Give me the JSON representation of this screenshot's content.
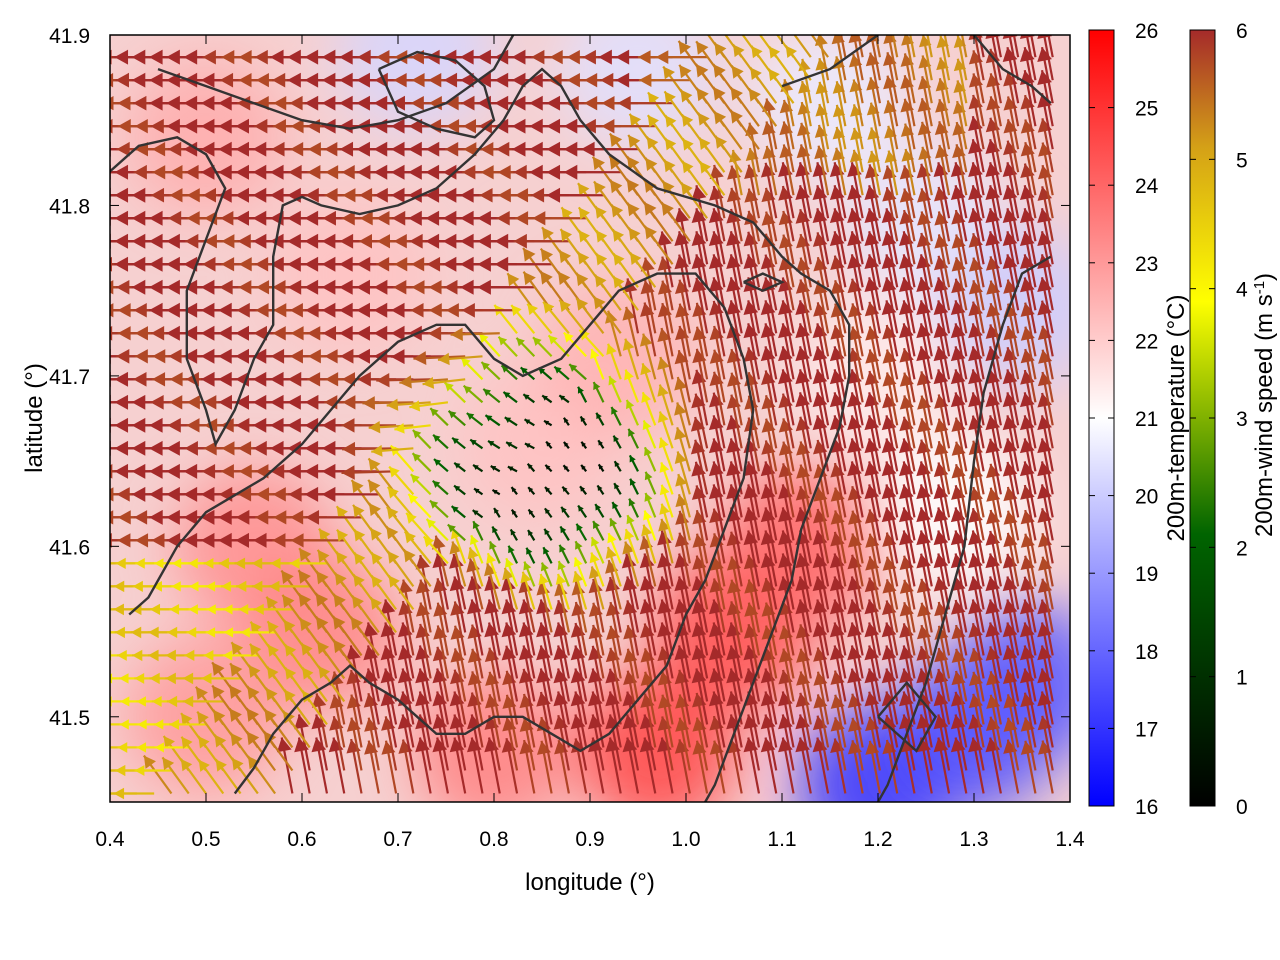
{
  "chart_data": {
    "type": "heatmap",
    "subtype": "field map with wind vectors and contour lines",
    "xlabel": "longitude (°)",
    "ylabel": "latitude (°)",
    "xlim": [
      0.4,
      1.4
    ],
    "ylim": [
      41.45,
      41.9
    ],
    "x_ticks": [
      "0.4",
      "0.5",
      "0.6",
      "0.7",
      "0.8",
      "0.9",
      "1.0",
      "1.1",
      "1.2",
      "1.3",
      "1.4"
    ],
    "y_ticks": [
      "41.5",
      "41.6",
      "41.7",
      "41.8",
      "41.9"
    ],
    "grid": false,
    "temperature_colorbar": {
      "label": "200m-temperature (°C)",
      "range": [
        16,
        26
      ],
      "ticks": [
        "16",
        "17",
        "18",
        "19",
        "20",
        "21",
        "22",
        "23",
        "24",
        "25",
        "26"
      ],
      "colors": [
        "#0000ff",
        "#ffffff",
        "#ff0000"
      ]
    },
    "wind_colorbar": {
      "label": "200m-wind speed (m s",
      "label_superscript": "-1",
      "label_suffix": ")",
      "range": [
        0,
        6
      ],
      "ticks": [
        "0",
        "1",
        "2",
        "3",
        "4",
        "5",
        "6"
      ],
      "colors": [
        "#000000",
        "#006400",
        "#ffff00",
        "#d4a017",
        "#a52a2a"
      ]
    },
    "temperature_blobs": [
      {
        "lon": 0.5,
        "lat": 41.84,
        "value": 22.6
      },
      {
        "lon": 0.55,
        "lat": 41.6,
        "value": 23.2
      },
      {
        "lon": 0.62,
        "lat": 41.55,
        "value": 23.4
      },
      {
        "lon": 0.5,
        "lat": 41.5,
        "value": 23.0
      },
      {
        "lon": 0.85,
        "lat": 41.66,
        "value": 22.2
      },
      {
        "lon": 0.93,
        "lat": 41.71,
        "value": 22.5
      },
      {
        "lon": 1.05,
        "lat": 41.55,
        "value": 24.5
      },
      {
        "lon": 1.12,
        "lat": 41.6,
        "value": 24.0
      },
      {
        "lon": 0.97,
        "lat": 41.48,
        "value": 24.6
      },
      {
        "lon": 0.8,
        "lat": 41.48,
        "value": 23.5
      },
      {
        "lon": 0.65,
        "lat": 41.76,
        "value": 22.2
      },
      {
        "lon": 1.15,
        "lat": 41.86,
        "value": 20.6
      },
      {
        "lon": 1.25,
        "lat": 41.79,
        "value": 20.5
      },
      {
        "lon": 1.35,
        "lat": 41.74,
        "value": 20.0
      },
      {
        "lon": 0.72,
        "lat": 41.89,
        "value": 20.2
      },
      {
        "lon": 0.95,
        "lat": 41.88,
        "value": 20.4
      },
      {
        "lon": 1.2,
        "lat": 41.46,
        "value": 17.0
      },
      {
        "lon": 1.3,
        "lat": 41.49,
        "value": 17.5
      },
      {
        "lon": 1.36,
        "lat": 41.52,
        "value": 17.8
      },
      {
        "lon": 1.28,
        "lat": 41.62,
        "value": 21.0
      },
      {
        "lon": 1.2,
        "lat": 41.7,
        "value": 21.4
      }
    ],
    "wind_field": {
      "domain": "longitude 0.4–1.4, latitude 41.45–41.9",
      "regimes": [
        {
          "region": "northwest half",
          "direction": "westward",
          "speed_ms": 6
        },
        {
          "region": "east and southeast",
          "direction": "north-northwestward",
          "speed_ms": 6
        },
        {
          "region": "center near (0.86, 41.64)",
          "direction": "calm",
          "speed_ms": 0.3
        },
        {
          "region": "southwest band",
          "direction": "westward",
          "speed_ms": 3.5
        }
      ]
    },
    "contour_lines": [
      {
        "name": "contour-1",
        "points": [
          [
            0.4,
            41.82
          ],
          [
            0.43,
            41.835
          ],
          [
            0.47,
            41.84
          ],
          [
            0.5,
            41.83
          ],
          [
            0.52,
            41.81
          ],
          [
            0.5,
            41.78
          ],
          [
            0.48,
            41.75
          ],
          [
            0.48,
            41.71
          ],
          [
            0.5,
            41.68
          ],
          [
            0.51,
            41.66
          ],
          [
            0.53,
            41.68
          ],
          [
            0.55,
            41.71
          ],
          [
            0.57,
            41.73
          ],
          [
            0.57,
            41.77
          ],
          [
            0.58,
            41.8
          ],
          [
            0.6,
            41.805
          ],
          [
            0.62,
            41.8
          ],
          [
            0.66,
            41.795
          ],
          [
            0.7,
            41.8
          ],
          [
            0.74,
            41.81
          ],
          [
            0.78,
            41.83
          ],
          [
            0.81,
            41.85
          ],
          [
            0.83,
            41.87
          ],
          [
            0.85,
            41.88
          ],
          [
            0.87,
            41.87
          ],
          [
            0.89,
            41.85
          ],
          [
            0.92,
            41.83
          ],
          [
            0.97,
            41.81
          ],
          [
            1.03,
            41.8
          ],
          [
            1.07,
            41.79
          ],
          [
            1.1,
            41.77
          ],
          [
            1.12,
            41.76
          ],
          [
            1.15,
            41.75
          ],
          [
            1.17,
            41.73
          ],
          [
            1.17,
            41.7
          ],
          [
            1.16,
            41.67
          ],
          [
            1.14,
            41.64
          ],
          [
            1.12,
            41.61
          ],
          [
            1.11,
            41.58
          ],
          [
            1.09,
            41.55
          ],
          [
            1.07,
            41.52
          ],
          [
            1.05,
            41.49
          ],
          [
            1.03,
            41.46
          ],
          [
            1.02,
            41.45
          ]
        ]
      },
      {
        "name": "contour-2",
        "points": [
          [
            0.42,
            41.56
          ],
          [
            0.44,
            41.57
          ],
          [
            0.47,
            41.6
          ],
          [
            0.5,
            41.62
          ],
          [
            0.53,
            41.63
          ],
          [
            0.56,
            41.64
          ],
          [
            0.6,
            41.66
          ],
          [
            0.63,
            41.68
          ],
          [
            0.66,
            41.7
          ],
          [
            0.7,
            41.72
          ],
          [
            0.74,
            41.73
          ],
          [
            0.77,
            41.73
          ],
          [
            0.8,
            41.71
          ],
          [
            0.83,
            41.7
          ],
          [
            0.87,
            41.71
          ],
          [
            0.9,
            41.73
          ],
          [
            0.93,
            41.75
          ],
          [
            0.97,
            41.76
          ],
          [
            1.01,
            41.76
          ],
          [
            1.04,
            41.74
          ],
          [
            1.06,
            41.71
          ],
          [
            1.07,
            41.68
          ],
          [
            1.06,
            41.64
          ],
          [
            1.04,
            41.61
          ],
          [
            1.02,
            41.58
          ],
          [
            1.0,
            41.56
          ],
          [
            0.98,
            41.53
          ],
          [
            0.95,
            41.51
          ],
          [
            0.92,
            41.49
          ],
          [
            0.89,
            41.48
          ],
          [
            0.86,
            41.49
          ],
          [
            0.83,
            41.5
          ],
          [
            0.8,
            41.5
          ],
          [
            0.77,
            41.49
          ],
          [
            0.74,
            41.49
          ],
          [
            0.72,
            41.5
          ],
          [
            0.7,
            41.51
          ],
          [
            0.67,
            41.52
          ],
          [
            0.65,
            41.53
          ],
          [
            0.63,
            41.52
          ],
          [
            0.6,
            41.51
          ],
          [
            0.57,
            41.49
          ],
          [
            0.55,
            41.47
          ],
          [
            0.53,
            41.455
          ]
        ]
      },
      {
        "name": "contour-3",
        "points": [
          [
            0.45,
            41.88
          ],
          [
            0.5,
            41.87
          ],
          [
            0.55,
            41.86
          ],
          [
            0.6,
            41.85
          ],
          [
            0.65,
            41.845
          ],
          [
            0.7,
            41.85
          ],
          [
            0.75,
            41.86
          ],
          [
            0.8,
            41.88
          ],
          [
            0.82,
            41.9
          ]
        ]
      },
      {
        "name": "contour-4",
        "points": [
          [
            0.68,
            41.88
          ],
          [
            0.72,
            41.89
          ],
          [
            0.76,
            41.885
          ],
          [
            0.79,
            41.87
          ],
          [
            0.8,
            41.85
          ],
          [
            0.78,
            41.84
          ],
          [
            0.74,
            41.845
          ],
          [
            0.7,
            41.855
          ],
          [
            0.68,
            41.88
          ]
        ]
      },
      {
        "name": "contour-5",
        "points": [
          [
            1.1,
            41.87
          ],
          [
            1.15,
            41.88
          ],
          [
            1.2,
            41.9
          ]
        ]
      },
      {
        "name": "contour-6",
        "points": [
          [
            1.3,
            41.9
          ],
          [
            1.33,
            41.88
          ],
          [
            1.36,
            41.87
          ],
          [
            1.38,
            41.86
          ]
        ]
      },
      {
        "name": "contour-7",
        "points": [
          [
            1.38,
            41.77
          ],
          [
            1.35,
            41.76
          ],
          [
            1.33,
            41.73
          ],
          [
            1.31,
            41.69
          ],
          [
            1.3,
            41.65
          ],
          [
            1.29,
            41.6
          ],
          [
            1.27,
            41.56
          ],
          [
            1.25,
            41.52
          ],
          [
            1.23,
            41.49
          ],
          [
            1.21,
            41.46
          ],
          [
            1.2,
            41.45
          ]
        ]
      },
      {
        "name": "contour-8",
        "points": [
          [
            1.2,
            41.5
          ],
          [
            1.23,
            41.52
          ],
          [
            1.26,
            41.5
          ],
          [
            1.24,
            41.48
          ],
          [
            1.2,
            41.5
          ]
        ]
      },
      {
        "name": "contour-9",
        "points": [
          [
            1.06,
            41.755
          ],
          [
            1.08,
            41.76
          ],
          [
            1.1,
            41.755
          ],
          [
            1.08,
            41.75
          ],
          [
            1.06,
            41.755
          ]
        ]
      }
    ]
  }
}
